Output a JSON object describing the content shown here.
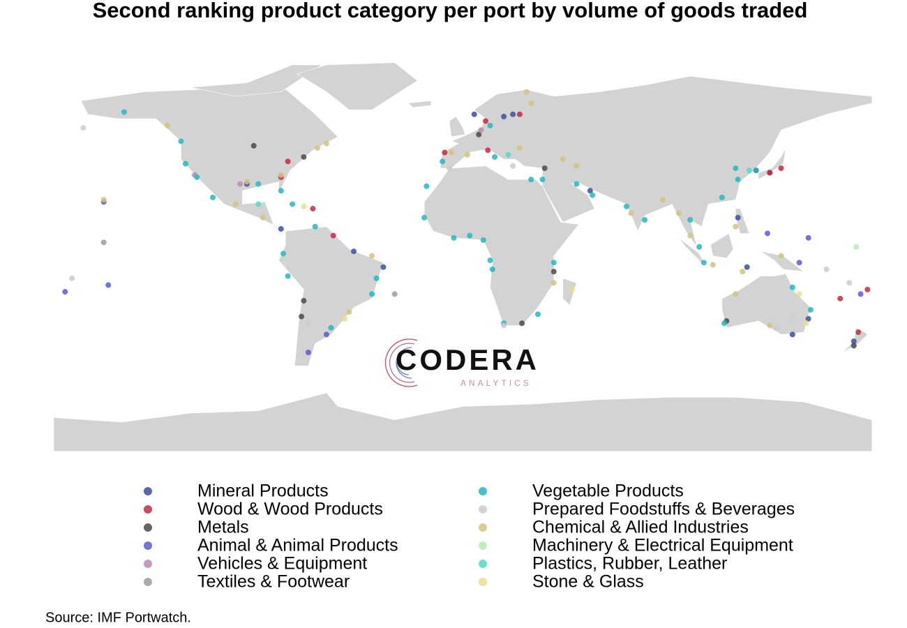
{
  "title": "Second ranking product category per port by volume of goods traded",
  "source": "Source: IMF Portwatch.",
  "logo": {
    "name": "CODERA",
    "tagline": "ANALYTICS"
  },
  "map": {
    "series": [
      {
        "name": "Mineral Products",
        "color": "#3d4f9e",
        "points": [
          [
            -80,
            9
          ],
          [
            -48,
            -1
          ],
          [
            -35,
            -8
          ],
          [
            5,
            60
          ],
          [
            22,
            60
          ],
          [
            56,
            26
          ],
          [
            125,
            -8
          ],
          [
            135,
            34
          ],
          [
            152,
            -31
          ],
          [
            172,
            -41
          ],
          [
            145,
            -38
          ],
          [
            -95,
            29
          ],
          [
            18,
            59
          ],
          [
            121,
            14
          ]
        ]
      },
      {
        "name": "Wood & Wood Products",
        "color": "#c8283e",
        "points": [
          [
            -77,
            39
          ],
          [
            -80,
            32
          ],
          [
            -66,
            18
          ],
          [
            -57,
            6
          ],
          [
            10,
            57
          ],
          [
            25,
            60
          ],
          [
            11,
            44
          ],
          [
            135,
            34
          ],
          [
            140,
            36
          ],
          [
            166,
            -22
          ],
          [
            178,
            -18
          ],
          [
            174,
            -37
          ],
          [
            -8,
            43
          ]
        ]
      },
      {
        "name": "Metals",
        "color": "#4a4a4a",
        "points": [
          [
            -92,
            46
          ],
          [
            -70,
            41
          ],
          [
            7,
            51
          ],
          [
            36,
            36
          ],
          [
            129,
            35
          ],
          [
            116,
            -32
          ],
          [
            26,
            -33
          ],
          [
            40,
            -10
          ],
          [
            -70,
            -23
          ],
          [
            -71,
            -30
          ],
          [
            172,
            -43
          ]
        ]
      },
      {
        "name": "Animal & Animal Products",
        "color": "#5a5ad6",
        "points": [
          [
            -158,
            21
          ],
          [
            -175,
            -19
          ],
          [
            -156,
            -16
          ],
          [
            175,
            -20
          ],
          [
            -68,
            -46
          ],
          [
            -60,
            -38
          ],
          [
            148,
            -6
          ],
          [
            152,
            5
          ],
          [
            134,
            7
          ]
        ]
      },
      {
        "name": "Vehicles & Equipment",
        "color": "#b48cb4",
        "points": [
          [
            -98,
            29
          ],
          [
            8,
            53
          ],
          [
            -118,
            33
          ]
        ]
      },
      {
        "name": "Textiles & Footwear",
        "color": "#a09a9c",
        "points": [
          [
            -158,
            3
          ],
          [
            -30,
            -20
          ]
        ]
      },
      {
        "name": "Vegetable Products",
        "color": "#1fb8c0",
        "points": [
          [
            -124,
            48
          ],
          [
            -122,
            38
          ],
          [
            -117,
            32
          ],
          [
            -110,
            23
          ],
          [
            -90,
            29
          ],
          [
            -80,
            26
          ],
          [
            -75,
            20
          ],
          [
            -65,
            10
          ],
          [
            -79,
            -2
          ],
          [
            -77,
            -12
          ],
          [
            -58,
            -35
          ],
          [
            -40,
            -20
          ],
          [
            -38,
            -13
          ],
          [
            -17,
            14
          ],
          [
            -16,
            28
          ],
          [
            3,
            6
          ],
          [
            -4,
            5
          ],
          [
            9,
            4
          ],
          [
            12,
            -5
          ],
          [
            13,
            -9
          ],
          [
            18,
            -33
          ],
          [
            33,
            -29
          ],
          [
            40,
            -6
          ],
          [
            35,
            31
          ],
          [
            30,
            31
          ],
          [
            50,
            29
          ],
          [
            57,
            24
          ],
          [
            72,
            19
          ],
          [
            80,
            13
          ],
          [
            100,
            13
          ],
          [
            104,
            1
          ],
          [
            106,
            -6
          ],
          [
            114,
            23
          ],
          [
            121,
            31
          ],
          [
            120,
            36
          ],
          [
            129,
            35
          ],
          [
            115,
            -33
          ],
          [
            153,
            -27
          ],
          [
            145,
            -17
          ],
          [
            12,
            55
          ],
          [
            -9,
            39
          ],
          [
            14,
            41
          ],
          [
            -149,
            61
          ]
        ]
      },
      {
        "name": "Prepared Foodstuffs & Beverages",
        "color": "#c8ccd2",
        "points": [
          [
            -167,
            54
          ],
          [
            -6,
            36
          ],
          [
            22,
            37
          ],
          [
            -68,
            -33
          ],
          [
            145,
            -30
          ],
          [
            138,
            -35
          ],
          [
            176,
            -38
          ],
          [
            160,
            -9
          ],
          [
            170,
            -15
          ],
          [
            -172,
            -13
          ],
          [
            18,
            -34
          ]
        ]
      },
      {
        "name": "Chemical & Allied Industries",
        "color": "#d4c27a",
        "points": [
          [
            -130,
            55
          ],
          [
            -95,
            30
          ],
          [
            -80,
            33
          ],
          [
            -64,
            45
          ],
          [
            -60,
            47
          ],
          [
            -100,
            20
          ],
          [
            -88,
            14
          ],
          [
            -40,
            -3
          ],
          [
            -50,
            -28
          ],
          [
            -5,
            43
          ],
          [
            25,
            45
          ],
          [
            44,
            40
          ],
          [
            50,
            37
          ],
          [
            74,
            16
          ],
          [
            88,
            22
          ],
          [
            95,
            16
          ],
          [
            100,
            6
          ],
          [
            110,
            -7
          ],
          [
            120,
            10
          ],
          [
            123,
            -10
          ],
          [
            140,
            -3
          ],
          [
            135,
            -34
          ],
          [
            120,
            -20
          ],
          [
            40,
            -15
          ],
          [
            30,
            65
          ],
          [
            28,
            70
          ],
          [
            2,
            42
          ],
          [
            -158,
            22
          ]
        ]
      },
      {
        "name": "Machinery & Electrical Equipment",
        "color": "#b4ecb4",
        "points": [
          [
            173,
            1
          ]
        ]
      },
      {
        "name": "Plastics, Rubber, Leather",
        "color": "#50dcc8",
        "points": [
          [
            20,
            42
          ],
          [
            126,
            35
          ],
          [
            -90,
            20
          ]
        ]
      },
      {
        "name": "Stone & Glass",
        "color": "#ecdc8c",
        "points": [
          [
            -70,
            19
          ],
          [
            -52,
            -31
          ],
          [
            48,
            -18
          ],
          [
            148,
            -20
          ],
          [
            151,
            -33
          ]
        ]
      }
    ]
  }
}
